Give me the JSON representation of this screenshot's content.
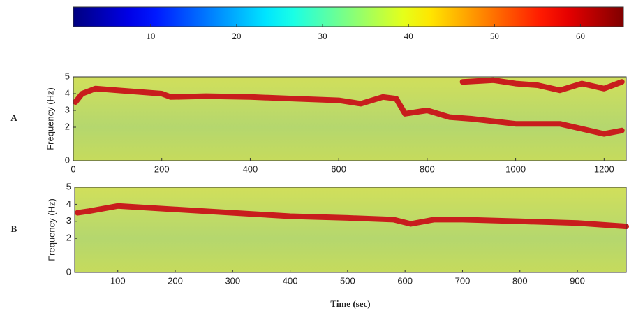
{
  "chart_data": [
    {
      "type": "colorbar",
      "colormap": "jet",
      "clim": [
        1,
        65
      ],
      "ticks": [
        10,
        20,
        30,
        40,
        50,
        60
      ]
    },
    {
      "type": "spectrogram",
      "panel_label": "A",
      "y_label": "Frequency (Hz)",
      "xlim": [
        0,
        1250
      ],
      "xticks": [
        0,
        200,
        400,
        600,
        800,
        1000,
        1200
      ],
      "ylim": [
        0,
        5
      ],
      "yticks": [
        0,
        2,
        3,
        4,
        5
      ],
      "background_color": "#c6db5c",
      "ridges": [
        {
          "color": "#c81d1d",
          "x": [
            5,
            20,
            50,
            100,
            150,
            200,
            220,
            300,
            400,
            500,
            600,
            650,
            700,
            730,
            750,
            800,
            850,
            900,
            1000,
            1100,
            1200,
            1240
          ],
          "values": [
            3.5,
            4.0,
            4.3,
            4.2,
            4.1,
            4.0,
            3.8,
            3.85,
            3.8,
            3.7,
            3.6,
            3.4,
            3.8,
            3.7,
            2.8,
            3.0,
            2.6,
            2.5,
            2.2,
            2.2,
            1.6,
            1.8
          ]
        },
        {
          "color": "#c81d1d",
          "x": [
            880,
            950,
            1000,
            1050,
            1100,
            1150,
            1200,
            1240
          ],
          "values": [
            4.7,
            4.8,
            4.6,
            4.5,
            4.2,
            4.6,
            4.3,
            4.7
          ]
        }
      ]
    },
    {
      "type": "spectrogram",
      "panel_label": "B",
      "y_label": "Frequency (Hz)",
      "x_label": "Time (sec)",
      "xlim": [
        25,
        985
      ],
      "xticks": [
        100,
        200,
        300,
        400,
        500,
        600,
        700,
        800,
        900
      ],
      "ylim": [
        0,
        5
      ],
      "yticks": [
        0,
        2,
        3,
        4,
        5
      ],
      "background_color": "#c6db5c",
      "ridges": [
        {
          "color": "#c81d1d",
          "x": [
            30,
            50,
            100,
            150,
            200,
            300,
            400,
            500,
            580,
            610,
            650,
            700,
            800,
            900,
            985
          ],
          "values": [
            3.5,
            3.6,
            3.9,
            3.8,
            3.7,
            3.5,
            3.3,
            3.2,
            3.1,
            2.85,
            3.1,
            3.1,
            3.0,
            2.9,
            2.7
          ]
        }
      ]
    }
  ]
}
